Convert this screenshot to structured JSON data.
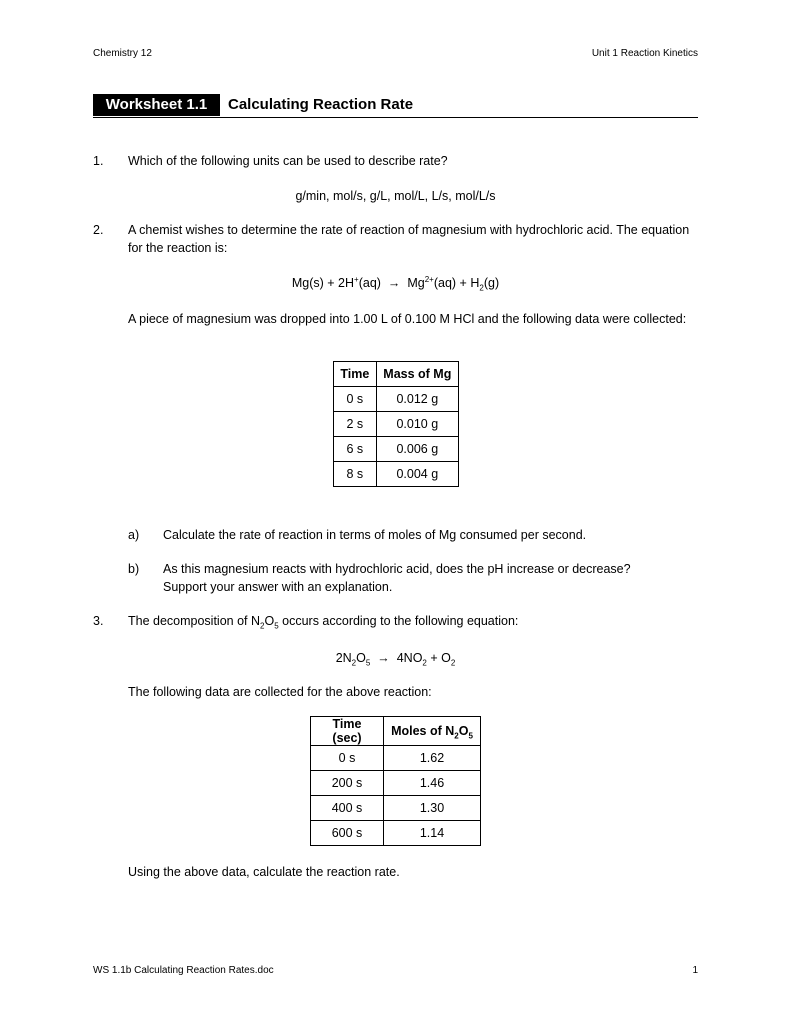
{
  "header": {
    "left": "Chemistry 12",
    "right": "Unit 1 Reaction Kinetics"
  },
  "title": {
    "label": "Worksheet 1.1",
    "text": "Calculating Reaction Rate"
  },
  "questions": [
    {
      "number": "1.",
      "text": "Which of the following units can be used to describe rate?",
      "units": "g/min, mol/s, g/L, mol/L, L/s, mol/L/s"
    },
    {
      "number": "2.",
      "text": "A chemist wishes to determine the rate of reaction of magnesium with hydrochloric acid.  The equation for the reaction is:",
      "equation": [
        "Mg(s) + 2H",
        "+",
        "(aq)",
        "→",
        "Mg",
        "2+",
        "(aq) + H",
        "2",
        "(g)"
      ],
      "text2": "A piece of magnesium was dropped into 1.00 L of 0.100 M HCl and the following data were collected:",
      "table": {
        "headers": [
          "Time",
          "Mass of Mg"
        ],
        "rows": [
          [
            "0 s",
            "0.012 g"
          ],
          [
            "2 s",
            "0.010 g"
          ],
          [
            "6 s",
            "0.006 g"
          ],
          [
            "8 s",
            "0.004 g"
          ]
        ]
      },
      "parts": [
        {
          "label": "a)",
          "text": "Calculate the rate of reaction in terms of moles of Mg consumed per second."
        },
        {
          "label": "b)",
          "text": "As this magnesium reacts with hydrochloric acid, does the pH increase or decrease? Support your answer with an explanation."
        }
      ]
    },
    {
      "number": "3.",
      "text": [
        "The decomposition of N",
        "2",
        "O",
        "5",
        " occurs according to the following equation:"
      ],
      "equation": [
        "2N",
        "2",
        "O",
        "5",
        "→",
        "4NO",
        "2",
        " + O",
        "2"
      ],
      "text2": "The following data are collected for the above reaction:",
      "table": {
        "headers": {
          "time": "Time (sec)",
          "moles": [
            "Moles of N",
            "2",
            "O",
            "5"
          ]
        },
        "rows": [
          [
            "0 s",
            "1.62"
          ],
          [
            "200 s",
            "1.46"
          ],
          [
            "400 s",
            "1.30"
          ],
          [
            "600 s",
            "1.14"
          ]
        ]
      },
      "text3": "Using the above data, calculate the reaction rate."
    }
  ],
  "footer": {
    "left": "WS 1.1b Calculating Reaction Rates.doc",
    "right": "1"
  }
}
